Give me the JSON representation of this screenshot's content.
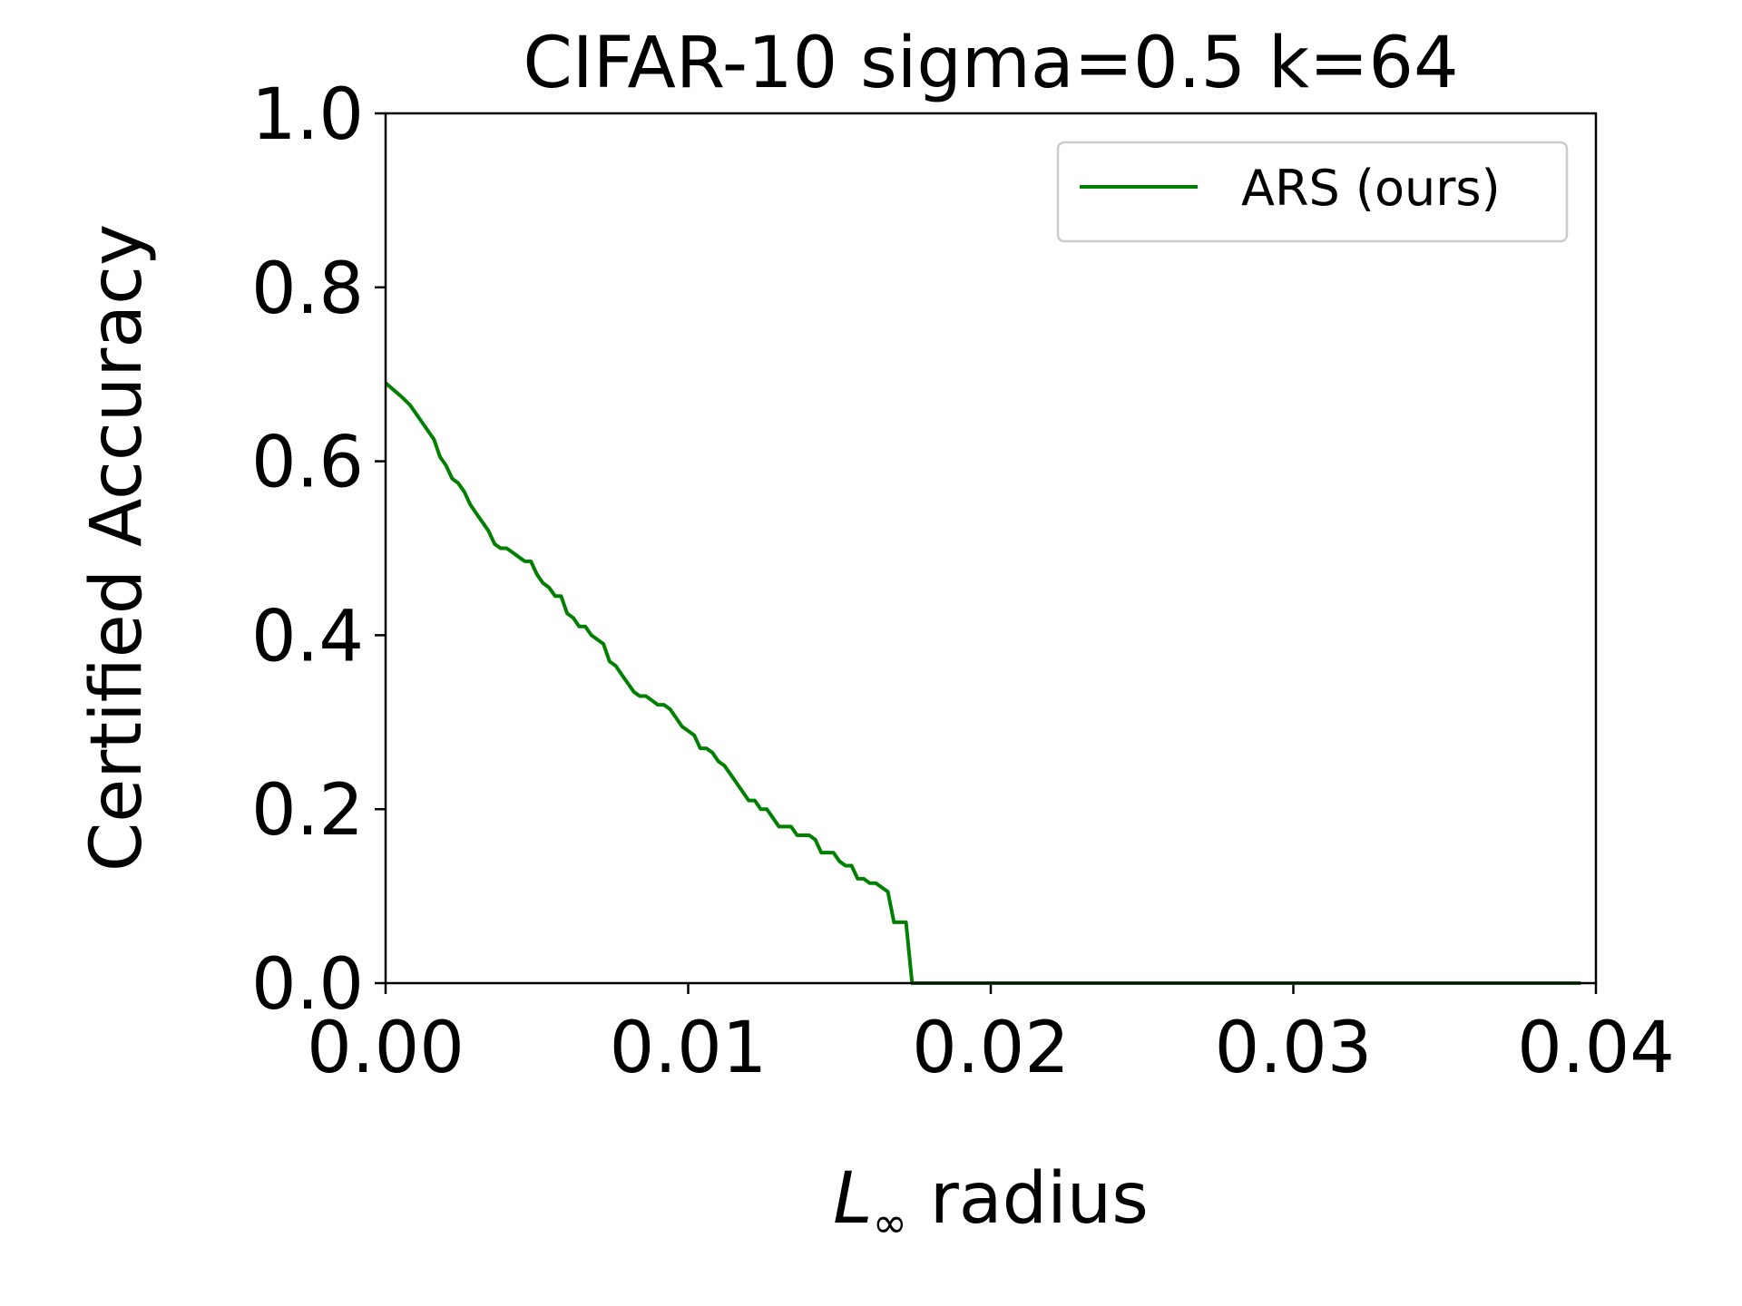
{
  "chart_data": {
    "type": "line",
    "title": "CIFAR-10 sigma=0.5 k=64",
    "xlabel_main": "L",
    "xlabel_sub": "∞",
    "xlabel_rest": " radius",
    "ylabel": "Certified Accuracy",
    "xlim": [
      0,
      0.04
    ],
    "ylim": [
      0,
      1.0
    ],
    "xticks": [
      "0.00",
      "0.01",
      "0.02",
      "0.03",
      "0.04"
    ],
    "yticks": [
      "0.0",
      "0.2",
      "0.4",
      "0.6",
      "0.8",
      "1.0"
    ],
    "grid": false,
    "legend_position": "top-right",
    "colors": {
      "series": "#008000",
      "axis": "#000000",
      "legend_border": "#cccccc"
    },
    "series": [
      {
        "name": "ARS (ours)",
        "x": [
          0.0,
          0.0005,
          0.0008,
          0.001,
          0.0012,
          0.0014,
          0.0016,
          0.0018,
          0.002,
          0.0022,
          0.0024,
          0.0026,
          0.0028,
          0.003,
          0.0032,
          0.0034,
          0.0036,
          0.0038,
          0.004,
          0.0042,
          0.0044,
          0.0046,
          0.0048,
          0.005,
          0.0052,
          0.0054,
          0.0056,
          0.0058,
          0.006,
          0.0062,
          0.0064,
          0.0066,
          0.0068,
          0.007,
          0.0072,
          0.0074,
          0.0076,
          0.0078,
          0.008,
          0.0082,
          0.0084,
          0.0086,
          0.0088,
          0.009,
          0.0092,
          0.0094,
          0.0096,
          0.0098,
          0.01,
          0.0102,
          0.0104,
          0.0106,
          0.0108,
          0.011,
          0.0112,
          0.0114,
          0.0116,
          0.0118,
          0.012,
          0.0122,
          0.0124,
          0.0126,
          0.0128,
          0.013,
          0.0132,
          0.0134,
          0.0136,
          0.0138,
          0.014,
          0.0142,
          0.0144,
          0.0146,
          0.0148,
          0.015,
          0.0152,
          0.0154,
          0.0156,
          0.0158,
          0.016,
          0.0162,
          0.0164,
          0.0166,
          0.0168,
          0.017,
          0.0172,
          0.0174,
          0.018,
          0.025,
          0.0395
        ],
        "y": [
          0.69,
          0.675,
          0.665,
          0.655,
          0.645,
          0.635,
          0.625,
          0.605,
          0.595,
          0.58,
          0.575,
          0.565,
          0.55,
          0.54,
          0.53,
          0.52,
          0.505,
          0.5,
          0.5,
          0.495,
          0.49,
          0.485,
          0.485,
          0.47,
          0.46,
          0.455,
          0.445,
          0.445,
          0.425,
          0.42,
          0.41,
          0.41,
          0.4,
          0.395,
          0.39,
          0.37,
          0.365,
          0.355,
          0.345,
          0.335,
          0.33,
          0.33,
          0.325,
          0.32,
          0.32,
          0.315,
          0.305,
          0.295,
          0.29,
          0.285,
          0.27,
          0.27,
          0.265,
          0.255,
          0.25,
          0.24,
          0.23,
          0.22,
          0.21,
          0.21,
          0.2,
          0.2,
          0.19,
          0.18,
          0.18,
          0.18,
          0.17,
          0.17,
          0.17,
          0.165,
          0.15,
          0.15,
          0.15,
          0.14,
          0.135,
          0.135,
          0.12,
          0.12,
          0.115,
          0.115,
          0.11,
          0.105,
          0.07,
          0.07,
          0.07,
          0.0,
          0.0,
          0.0,
          0.0
        ]
      }
    ]
  }
}
